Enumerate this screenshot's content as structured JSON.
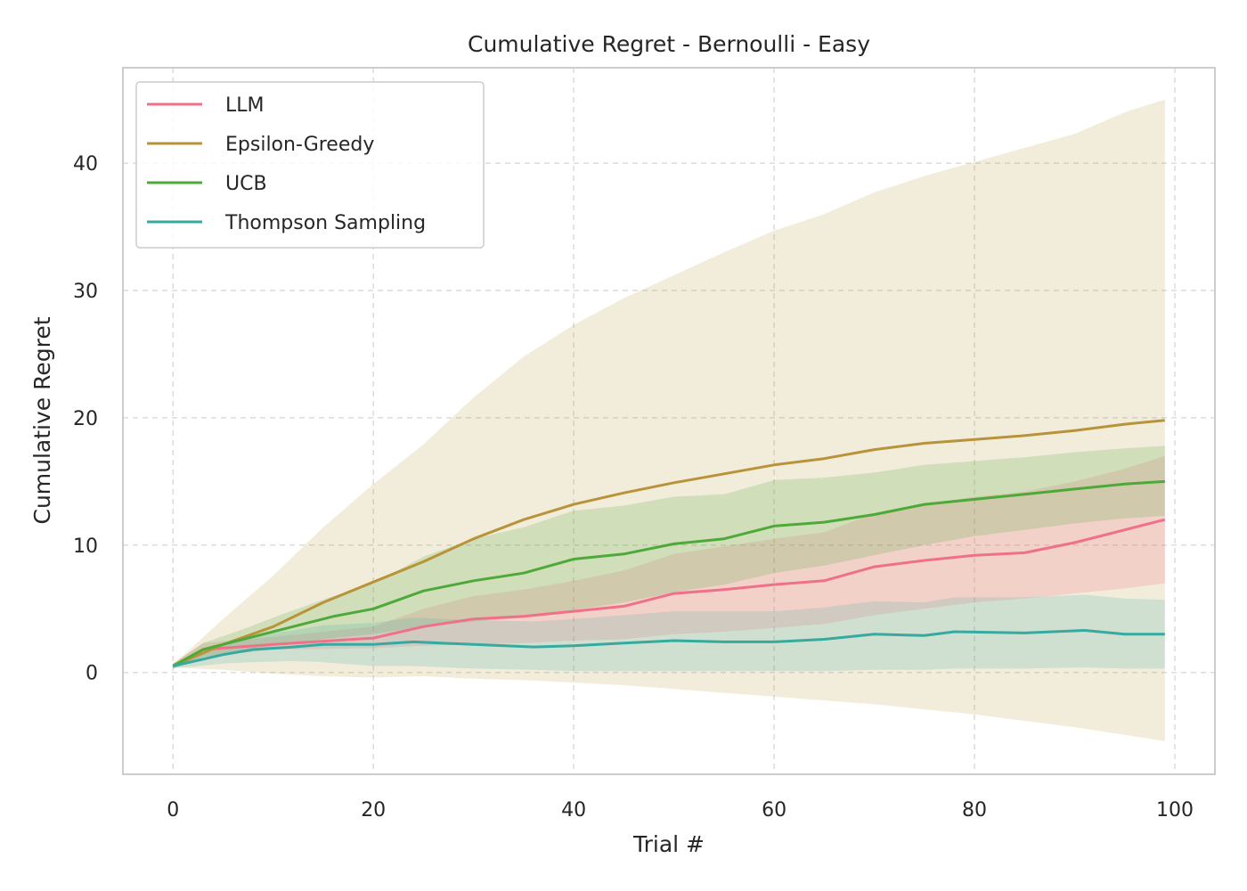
{
  "chart_data": {
    "type": "line",
    "title": "Cumulative Regret - Bernoulli - Easy",
    "xlabel": "Trial #",
    "ylabel": "Cumulative Regret",
    "xlim": [
      -5,
      104
    ],
    "ylim": [
      -8,
      47.5
    ],
    "xticks": [
      0,
      20,
      40,
      60,
      80,
      100
    ],
    "yticks": [
      0,
      10,
      20,
      30,
      40
    ],
    "grid": true,
    "legend_position": "top-left",
    "series": [
      {
        "name": "LLM",
        "color": "#f0708a",
        "x": [
          0,
          3,
          10,
          20,
          25,
          30,
          35,
          40,
          45,
          50,
          55,
          60,
          65,
          70,
          75,
          80,
          85,
          90,
          95,
          99
        ],
        "y": [
          0.5,
          1.8,
          2.2,
          2.7,
          3.6,
          4.2,
          4.4,
          4.8,
          5.2,
          6.2,
          6.5,
          6.9,
          7.2,
          8.3,
          8.8,
          9.2,
          9.4,
          10.2,
          11.2,
          12.0
        ],
        "lower": [
          0.3,
          1.2,
          1.8,
          1.9,
          2.1,
          2.2,
          2.3,
          2.5,
          2.6,
          3.0,
          3.2,
          3.5,
          3.8,
          4.5,
          5.0,
          5.5,
          5.8,
          6.2,
          6.6,
          7.0
        ],
        "upper": [
          0.7,
          2.3,
          2.8,
          3.6,
          5.0,
          6.0,
          6.5,
          7.2,
          8.0,
          9.3,
          9.9,
          10.5,
          11.0,
          12.5,
          13.2,
          13.8,
          14.2,
          15.0,
          16.0,
          17.0
        ]
      },
      {
        "name": "Epsilon-Greedy",
        "color": "#b8933a",
        "x": [
          0,
          5,
          10,
          15,
          20,
          25,
          30,
          35,
          40,
          45,
          50,
          55,
          60,
          65,
          70,
          75,
          80,
          85,
          90,
          95,
          99
        ],
        "y": [
          0.5,
          2.2,
          3.6,
          5.5,
          7.1,
          8.7,
          10.5,
          12.0,
          13.2,
          14.1,
          14.9,
          15.6,
          16.3,
          16.8,
          17.5,
          18.0,
          18.3,
          18.6,
          19.0,
          19.5,
          19.8
        ],
        "lower": [
          0.4,
          0.2,
          -0.1,
          -0.3,
          -0.4,
          -0.3,
          -0.5,
          -0.6,
          -0.8,
          -1.0,
          -1.3,
          -1.6,
          -1.9,
          -2.2,
          -2.5,
          -2.9,
          -3.3,
          -3.8,
          -4.3,
          -4.9,
          -5.4
        ],
        "upper": [
          0.6,
          4.2,
          7.6,
          11.4,
          14.8,
          17.9,
          21.6,
          24.8,
          27.3,
          29.4,
          31.2,
          33.0,
          34.7,
          36.0,
          37.7,
          39.0,
          40.1,
          41.2,
          42.3,
          44.0,
          45.0
        ]
      },
      {
        "name": "UCB",
        "color": "#4daa38",
        "x": [
          0,
          3,
          7,
          11,
          16,
          20,
          25,
          30,
          35,
          40,
          45,
          50,
          55,
          60,
          65,
          70,
          75,
          80,
          85,
          90,
          95,
          99
        ],
        "y": [
          0.5,
          1.8,
          2.6,
          3.4,
          4.4,
          5.0,
          6.4,
          7.2,
          7.8,
          8.9,
          9.3,
          10.1,
          10.5,
          11.5,
          11.8,
          12.4,
          13.2,
          13.6,
          14.0,
          14.4,
          14.8,
          15.0
        ],
        "lower": [
          0.3,
          1.2,
          1.7,
          2.2,
          2.7,
          3.0,
          3.6,
          4.0,
          4.3,
          4.9,
          5.5,
          6.3,
          6.9,
          7.8,
          8.4,
          9.2,
          10.0,
          10.7,
          11.2,
          11.7,
          12.1,
          12.3
        ],
        "upper": [
          0.7,
          2.3,
          3.4,
          4.6,
          6.0,
          7.0,
          9.1,
          10.5,
          11.4,
          12.7,
          13.1,
          13.8,
          14.0,
          15.1,
          15.3,
          15.7,
          16.3,
          16.6,
          16.9,
          17.3,
          17.6,
          17.8
        ]
      },
      {
        "name": "Thompson Sampling",
        "color": "#36aaa0",
        "x": [
          0,
          5,
          8,
          12,
          15,
          20,
          24,
          30,
          36,
          40,
          45,
          50,
          55,
          60,
          65,
          70,
          75,
          78,
          85,
          91,
          95,
          99
        ],
        "y": [
          0.5,
          1.4,
          1.8,
          2.0,
          2.2,
          2.2,
          2.4,
          2.2,
          2.0,
          2.1,
          2.3,
          2.5,
          2.4,
          2.4,
          2.6,
          3.0,
          2.9,
          3.2,
          3.1,
          3.3,
          3.0,
          3.0
        ],
        "lower": [
          0.3,
          0.7,
          0.8,
          0.9,
          0.8,
          0.5,
          0.5,
          0.3,
          0.2,
          0.1,
          0.1,
          0.1,
          0.1,
          0.1,
          0.1,
          0.2,
          0.2,
          0.3,
          0.3,
          0.4,
          0.3,
          0.3
        ],
        "upper": [
          0.7,
          2.2,
          2.9,
          3.3,
          3.7,
          3.9,
          4.3,
          4.1,
          4.0,
          4.2,
          4.5,
          4.8,
          4.8,
          4.8,
          5.1,
          5.6,
          5.5,
          5.9,
          5.9,
          6.1,
          5.8,
          5.7
        ]
      }
    ]
  }
}
